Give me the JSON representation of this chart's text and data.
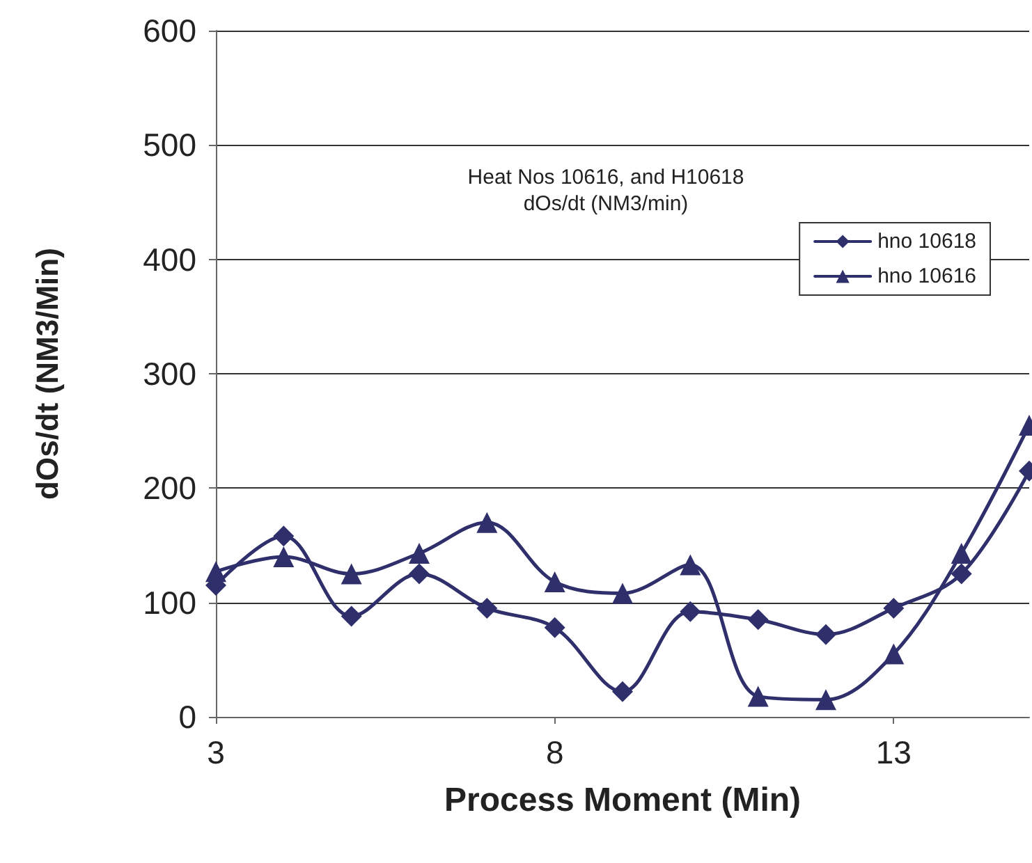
{
  "chart_data": {
    "type": "line",
    "title": "Heat Nos 10616, and H10618",
    "subtitle": "dOs/dt (NM3/min)",
    "xlabel": "Process Moment (Min)",
    "ylabel": "dOs/dt (NM3/Min)",
    "x": [
      3,
      4,
      5,
      6,
      7,
      8,
      9,
      10,
      11,
      12,
      13,
      14,
      15
    ],
    "series": [
      {
        "name": "hno 10618",
        "color": "#2e2f6b",
        "marker": "diamond",
        "values": [
          115,
          158,
          88,
          125,
          95,
          78,
          22,
          92,
          85,
          72,
          95,
          125,
          215
        ]
      },
      {
        "name": "hno 10616",
        "color": "#2e2f6b",
        "marker": "triangle",
        "values": [
          127,
          140,
          125,
          143,
          170,
          118,
          108,
          133,
          18,
          15,
          55,
          143,
          255
        ]
      }
    ],
    "xlim": [
      3,
      15
    ],
    "xticks": [
      3,
      8,
      13
    ],
    "ylim": [
      0,
      600
    ],
    "yticks": [
      0,
      100,
      200,
      300,
      400,
      500,
      600
    ],
    "grid": "y",
    "legend": "top right",
    "line_style": "solid"
  }
}
